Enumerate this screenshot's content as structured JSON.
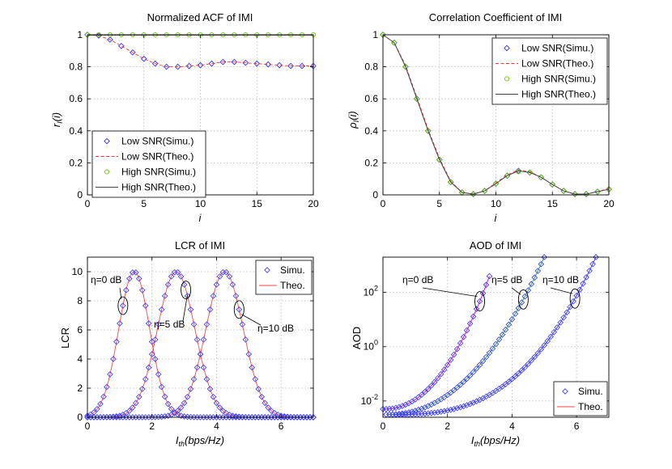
{
  "chart_data": [
    {
      "id": "acf",
      "type": "line",
      "title": "Normalized ACF of IMI",
      "xlabel": "i",
      "ylabel": "r_I(i)",
      "xlim": [
        0,
        20
      ],
      "ylim": [
        0,
        1
      ],
      "xticks": [
        0,
        5,
        10,
        15,
        20
      ],
      "yticks": [
        0,
        0.2,
        0.4,
        0.6,
        0.8,
        1
      ],
      "xtick_labels": [
        "0",
        "5",
        "10",
        "15",
        "20"
      ],
      "ytick_labels": [
        "0",
        "0.2",
        "0.4",
        "0.6",
        "0.8",
        "1"
      ],
      "grid": true,
      "legend_position": "bottom-left",
      "legend": [
        "Low SNR(Simu.)",
        "Low SNR(Theo.)",
        "High SNR(Simu.)",
        "High SNR(Theo.)"
      ],
      "series": [
        {
          "name": "Low SNR(Simu.)",
          "style": "marker-diamond",
          "color": "#3333ff",
          "x": [
            0,
            1,
            2,
            3,
            4,
            5,
            6,
            7,
            8,
            9,
            10,
            11,
            12,
            13,
            14,
            15,
            16,
            17,
            18,
            19,
            20
          ],
          "y": [
            1,
            0.995,
            0.97,
            0.93,
            0.89,
            0.85,
            0.82,
            0.8,
            0.8,
            0.805,
            0.81,
            0.82,
            0.83,
            0.83,
            0.825,
            0.82,
            0.815,
            0.81,
            0.805,
            0.805,
            0.805
          ]
        },
        {
          "name": "Low SNR(Theo.)",
          "style": "dashed",
          "color": "#ff3333",
          "x": [
            0,
            1,
            2,
            3,
            4,
            5,
            6,
            7,
            8,
            9,
            10,
            11,
            12,
            13,
            14,
            15,
            16,
            17,
            18,
            19,
            20
          ],
          "y": [
            1,
            0.995,
            0.97,
            0.93,
            0.89,
            0.85,
            0.82,
            0.8,
            0.8,
            0.805,
            0.81,
            0.82,
            0.83,
            0.83,
            0.825,
            0.82,
            0.815,
            0.81,
            0.805,
            0.805,
            0.805
          ]
        },
        {
          "name": "High SNR(Simu.)",
          "style": "marker-circle",
          "color": "#66cc00",
          "x": [
            0,
            1,
            2,
            3,
            4,
            5,
            6,
            7,
            8,
            9,
            10,
            11,
            12,
            13,
            14,
            15,
            16,
            17,
            18,
            19,
            20
          ],
          "y": [
            1,
            1,
            1,
            1,
            1,
            1,
            1,
            1,
            1,
            1,
            1,
            1,
            1,
            1,
            1,
            1,
            1,
            1,
            1,
            1,
            1
          ]
        },
        {
          "name": "High SNR(Theo.)",
          "style": "solid",
          "color": "#444444",
          "x": [
            0,
            20
          ],
          "y": [
            0.998,
            0.998
          ]
        }
      ]
    },
    {
      "id": "cc",
      "type": "line",
      "title": "Correlation Coefficient of IMI",
      "xlabel": "i",
      "ylabel": "ρ_I(i)",
      "xlim": [
        0,
        20
      ],
      "ylim": [
        0,
        1
      ],
      "xticks": [
        0,
        5,
        10,
        15,
        20
      ],
      "yticks": [
        0,
        0.2,
        0.4,
        0.6,
        0.8,
        1
      ],
      "xtick_labels": [
        "0",
        "5",
        "10",
        "15",
        "20"
      ],
      "ytick_labels": [
        "0",
        "0.2",
        "0.4",
        "0.6",
        "0.8",
        "1"
      ],
      "grid": true,
      "legend_position": "top-right",
      "legend": [
        "Low SNR(Simu.)",
        "Low SNR(Theo.)",
        "High SNR(Simu.)",
        "High SNR(Theo.)"
      ],
      "series": [
        {
          "name": "Low SNR(Simu.)",
          "style": "marker-diamond",
          "color": "#3333ff",
          "x": [
            0,
            1,
            2,
            3,
            4,
            5,
            6,
            7,
            8,
            9,
            10,
            11,
            12,
            13,
            14,
            15,
            16,
            17,
            18,
            19,
            20
          ],
          "y": [
            1,
            0.95,
            0.8,
            0.6,
            0.4,
            0.22,
            0.08,
            0.015,
            0.005,
            0.025,
            0.07,
            0.12,
            0.15,
            0.14,
            0.11,
            0.065,
            0.025,
            0.005,
            0.005,
            0.02,
            0.035
          ]
        },
        {
          "name": "Low SNR(Theo.)",
          "style": "dashed",
          "color": "#ff3333",
          "x": [
            0,
            1,
            2,
            3,
            4,
            5,
            6,
            7,
            8,
            9,
            10,
            11,
            12,
            13,
            14,
            15,
            16,
            17,
            18,
            19,
            20
          ],
          "y": [
            1,
            0.95,
            0.81,
            0.61,
            0.41,
            0.23,
            0.085,
            0.015,
            0.005,
            0.025,
            0.075,
            0.125,
            0.155,
            0.145,
            0.11,
            0.065,
            0.025,
            0.005,
            0.005,
            0.02,
            0.04
          ]
        },
        {
          "name": "High SNR(Simu.)",
          "style": "marker-circle",
          "color": "#66cc00",
          "x": [
            0,
            1,
            2,
            3,
            4,
            5,
            6,
            7,
            8,
            9,
            10,
            11,
            12,
            13,
            14,
            15,
            16,
            17,
            18,
            19,
            20
          ],
          "y": [
            1,
            0.95,
            0.8,
            0.6,
            0.4,
            0.22,
            0.08,
            0.015,
            0.005,
            0.025,
            0.07,
            0.12,
            0.145,
            0.14,
            0.11,
            0.065,
            0.025,
            0.005,
            0.005,
            0.02,
            0.035
          ]
        },
        {
          "name": "High SNR(Theo.)",
          "style": "solid",
          "color": "#444444",
          "x": [
            0,
            1,
            2,
            3,
            4,
            5,
            6,
            7,
            8,
            9,
            10,
            11,
            12,
            13,
            14,
            15,
            16,
            17,
            18,
            19,
            20
          ],
          "y": [
            1,
            0.95,
            0.8,
            0.6,
            0.4,
            0.22,
            0.08,
            0.015,
            0.005,
            0.025,
            0.07,
            0.12,
            0.15,
            0.14,
            0.11,
            0.065,
            0.025,
            0.005,
            0.005,
            0.02,
            0.035
          ]
        }
      ]
    },
    {
      "id": "lcr",
      "type": "line",
      "title": "LCR of IMI",
      "xlabel": "I_th(bps/Hz)",
      "ylabel": "LCR",
      "xlim": [
        0,
        7
      ],
      "ylim": [
        0,
        11
      ],
      "xticks": [
        0,
        2,
        4,
        6
      ],
      "yticks": [
        0,
        2,
        4,
        6,
        8,
        10
      ],
      "xtick_labels": [
        "0",
        "2",
        "4",
        "6"
      ],
      "ytick_labels": [
        "0",
        "2",
        "4",
        "6",
        "8",
        "10"
      ],
      "grid": true,
      "legend_position": "top-right",
      "legend": [
        "Simu.",
        "Theo."
      ],
      "curves": [
        {
          "label": "η=0 dB",
          "peak_x": 1.45,
          "peak_y": 10.0,
          "sigma": 0.48,
          "highlight_x": 1.1
        },
        {
          "label": "η=5 dB",
          "peak_x": 2.75,
          "peak_y": 10.0,
          "sigma": 0.58,
          "highlight_x": 3.05
        },
        {
          "label": "η=10 dB",
          "peak_x": 4.25,
          "peak_y": 10.0,
          "sigma": 0.58,
          "highlight_x": 4.7
        }
      ],
      "annotations": [
        "η=0 dB",
        "η=5 dB",
        "η=10 dB"
      ]
    },
    {
      "id": "aod",
      "type": "line",
      "title": "AOD of IMI",
      "xlabel": "I_th(bps/Hz)",
      "ylabel": "AOD",
      "xscale": "linear",
      "yscale": "log",
      "xlim": [
        0,
        7
      ],
      "ylim_log10": [
        -2.6,
        3.3
      ],
      "xticks": [
        0,
        2,
        4,
        6
      ],
      "xtick_labels": [
        "0",
        "2",
        "4",
        "6"
      ],
      "ytick_exponents": [
        -2,
        0,
        2
      ],
      "grid": true,
      "legend_position": "bottom-right",
      "legend": [
        "Simu.",
        "Theo."
      ],
      "curves": [
        {
          "label": "η=0 dB",
          "color": "#cc00cc",
          "x_start": 0.0,
          "x_end": 3.3,
          "log_start": -2.3,
          "log_end": 2.6,
          "power": 2.2,
          "highlight_x": 3.0
        },
        {
          "label": "η=5 dB",
          "color": "#22aa22",
          "x_start": 0.1,
          "x_end": 5.0,
          "log_start": -2.5,
          "log_end": 3.3,
          "power": 2.2,
          "highlight_x": 4.35
        },
        {
          "label": "η=10 dB",
          "color": "#3333ff",
          "x_start": 0.3,
          "x_end": 6.6,
          "log_start": -2.5,
          "log_end": 3.3,
          "power": 2.8,
          "highlight_x": 5.95
        }
      ],
      "annotations": [
        "η=0 dB",
        "η=5 dB",
        "η=10 dB"
      ]
    }
  ]
}
